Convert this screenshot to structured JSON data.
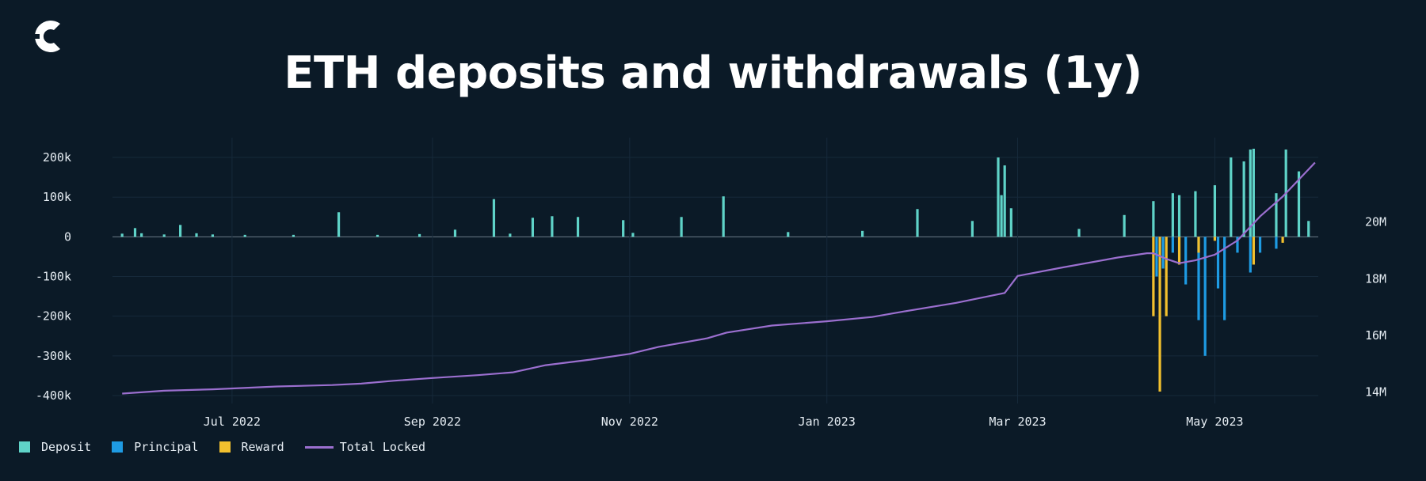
{
  "header": {
    "title": "ETH deposits and withdrawals (1y)",
    "logo_name": "cointelegraph-logo"
  },
  "colors": {
    "background": "#0b1a27",
    "deposit": "#5fd3c8",
    "principal": "#1e9be3",
    "reward": "#f2c02e",
    "total_locked": "#9b6fcf",
    "text": "#e6edf3"
  },
  "chart_data": {
    "type": "bar",
    "title": "ETH deposits and withdrawals (1y)",
    "x_range": [
      "2022-05-26",
      "2023-06-02"
    ],
    "x_ticks": [
      {
        "date": "2022-07-01",
        "label": "Jul 2022"
      },
      {
        "date": "2022-09-01",
        "label": "Sep 2022"
      },
      {
        "date": "2022-11-01",
        "label": "Nov 2022"
      },
      {
        "date": "2023-01-01",
        "label": "Jan 2023"
      },
      {
        "date": "2023-03-01",
        "label": "Mar 2023"
      },
      {
        "date": "2023-05-01",
        "label": "May 2023"
      }
    ],
    "y_left": {
      "ylim": [
        -420000,
        230000
      ],
      "ticks": [
        200000,
        100000,
        0,
        -100000,
        -200000,
        -300000,
        -400000
      ],
      "tick_labels": [
        "200k",
        "100k",
        "0",
        "-100k",
        "-200k",
        "-300k",
        "-400k"
      ]
    },
    "y_right": {
      "ylim": [
        13600000,
        22700000
      ],
      "ticks": [
        14000000,
        16000000,
        18000000,
        20000000
      ],
      "tick_labels": [
        "14M",
        "16M",
        "18M",
        "20M"
      ]
    },
    "grid": true,
    "legend_position": "bottom-left",
    "series": [
      {
        "name": "Deposit",
        "kind": "bar",
        "color": "#5fd3c8",
        "points": [
          [
            "2022-05-28",
            8000
          ],
          [
            "2022-06-01",
            22000
          ],
          [
            "2022-06-03",
            9000
          ],
          [
            "2022-06-10",
            6000
          ],
          [
            "2022-06-15",
            30000
          ],
          [
            "2022-06-20",
            9000
          ],
          [
            "2022-06-25",
            6000
          ],
          [
            "2022-07-05",
            5000
          ],
          [
            "2022-07-20",
            5000
          ],
          [
            "2022-08-03",
            62000
          ],
          [
            "2022-08-15",
            5000
          ],
          [
            "2022-08-28",
            7000
          ],
          [
            "2022-09-08",
            18000
          ],
          [
            "2022-09-20",
            95000
          ],
          [
            "2022-09-25",
            8000
          ],
          [
            "2022-10-02",
            48000
          ],
          [
            "2022-10-08",
            52000
          ],
          [
            "2022-10-16",
            50000
          ],
          [
            "2022-10-30",
            42000
          ],
          [
            "2022-11-02",
            10000
          ],
          [
            "2022-11-17",
            50000
          ],
          [
            "2022-11-30",
            102000
          ],
          [
            "2022-12-20",
            12000
          ],
          [
            "2023-01-12",
            15000
          ],
          [
            "2023-01-29",
            70000
          ],
          [
            "2023-02-15",
            40000
          ],
          [
            "2023-02-23",
            200000
          ],
          [
            "2023-02-24",
            105000
          ],
          [
            "2023-02-25",
            180000
          ],
          [
            "2023-02-27",
            72000
          ],
          [
            "2023-03-20",
            20000
          ],
          [
            "2023-04-03",
            55000
          ],
          [
            "2023-04-12",
            90000
          ],
          [
            "2023-04-18",
            110000
          ],
          [
            "2023-04-20",
            105000
          ],
          [
            "2023-04-25",
            115000
          ],
          [
            "2023-05-01",
            130000
          ],
          [
            "2023-05-06",
            200000
          ],
          [
            "2023-05-10",
            190000
          ],
          [
            "2023-05-12",
            220000
          ],
          [
            "2023-05-13",
            222000
          ],
          [
            "2023-05-20",
            110000
          ],
          [
            "2023-05-23",
            220000
          ],
          [
            "2023-05-27",
            165000
          ],
          [
            "2023-05-30",
            40000
          ]
        ]
      },
      {
        "name": "Principal",
        "kind": "bar",
        "color": "#1e9be3",
        "points": [
          [
            "2023-04-13",
            -100000
          ],
          [
            "2023-04-15",
            -80000
          ],
          [
            "2023-04-18",
            -40000
          ],
          [
            "2023-04-22",
            -120000
          ],
          [
            "2023-04-26",
            -210000
          ],
          [
            "2023-04-28",
            -300000
          ],
          [
            "2023-05-02",
            -130000
          ],
          [
            "2023-05-04",
            -210000
          ],
          [
            "2023-05-08",
            -40000
          ],
          [
            "2023-05-12",
            -90000
          ],
          [
            "2023-05-15",
            -40000
          ],
          [
            "2023-05-20",
            -30000
          ]
        ]
      },
      {
        "name": "Reward",
        "kind": "bar",
        "color": "#f2c02e",
        "points": [
          [
            "2023-04-12",
            -200000
          ],
          [
            "2023-04-14",
            -390000
          ],
          [
            "2023-04-16",
            -200000
          ],
          [
            "2023-04-20",
            -70000
          ],
          [
            "2023-04-26",
            -40000
          ],
          [
            "2023-05-01",
            -10000
          ],
          [
            "2023-05-13",
            -70000
          ],
          [
            "2023-05-22",
            -15000
          ]
        ]
      },
      {
        "name": "Total Locked",
        "kind": "line",
        "axis": "right",
        "color": "#9b6fcf",
        "points": [
          [
            "2022-05-28",
            13950000
          ],
          [
            "2022-06-10",
            14050000
          ],
          [
            "2022-06-25",
            14100000
          ],
          [
            "2022-07-15",
            14200000
          ],
          [
            "2022-08-01",
            14250000
          ],
          [
            "2022-08-10",
            14300000
          ],
          [
            "2022-08-20",
            14400000
          ],
          [
            "2022-09-01",
            14500000
          ],
          [
            "2022-09-15",
            14600000
          ],
          [
            "2022-09-26",
            14700000
          ],
          [
            "2022-10-06",
            14950000
          ],
          [
            "2022-10-20",
            15150000
          ],
          [
            "2022-11-01",
            15350000
          ],
          [
            "2022-11-10",
            15600000
          ],
          [
            "2022-11-25",
            15900000
          ],
          [
            "2022-12-01",
            16100000
          ],
          [
            "2022-12-15",
            16350000
          ],
          [
            "2023-01-01",
            16500000
          ],
          [
            "2023-01-15",
            16650000
          ],
          [
            "2023-01-25",
            16850000
          ],
          [
            "2023-02-10",
            17150000
          ],
          [
            "2023-02-25",
            17500000
          ],
          [
            "2023-03-01",
            18100000
          ],
          [
            "2023-03-15",
            18400000
          ],
          [
            "2023-04-01",
            18750000
          ],
          [
            "2023-04-10",
            18900000
          ],
          [
            "2023-04-12",
            18900000
          ],
          [
            "2023-04-16",
            18700000
          ],
          [
            "2023-04-20",
            18550000
          ],
          [
            "2023-04-25",
            18650000
          ],
          [
            "2023-05-01",
            18850000
          ],
          [
            "2023-05-08",
            19350000
          ],
          [
            "2023-05-15",
            20200000
          ],
          [
            "2023-05-22",
            20900000
          ],
          [
            "2023-05-27",
            21500000
          ],
          [
            "2023-06-01",
            22100000
          ]
        ]
      }
    ]
  }
}
